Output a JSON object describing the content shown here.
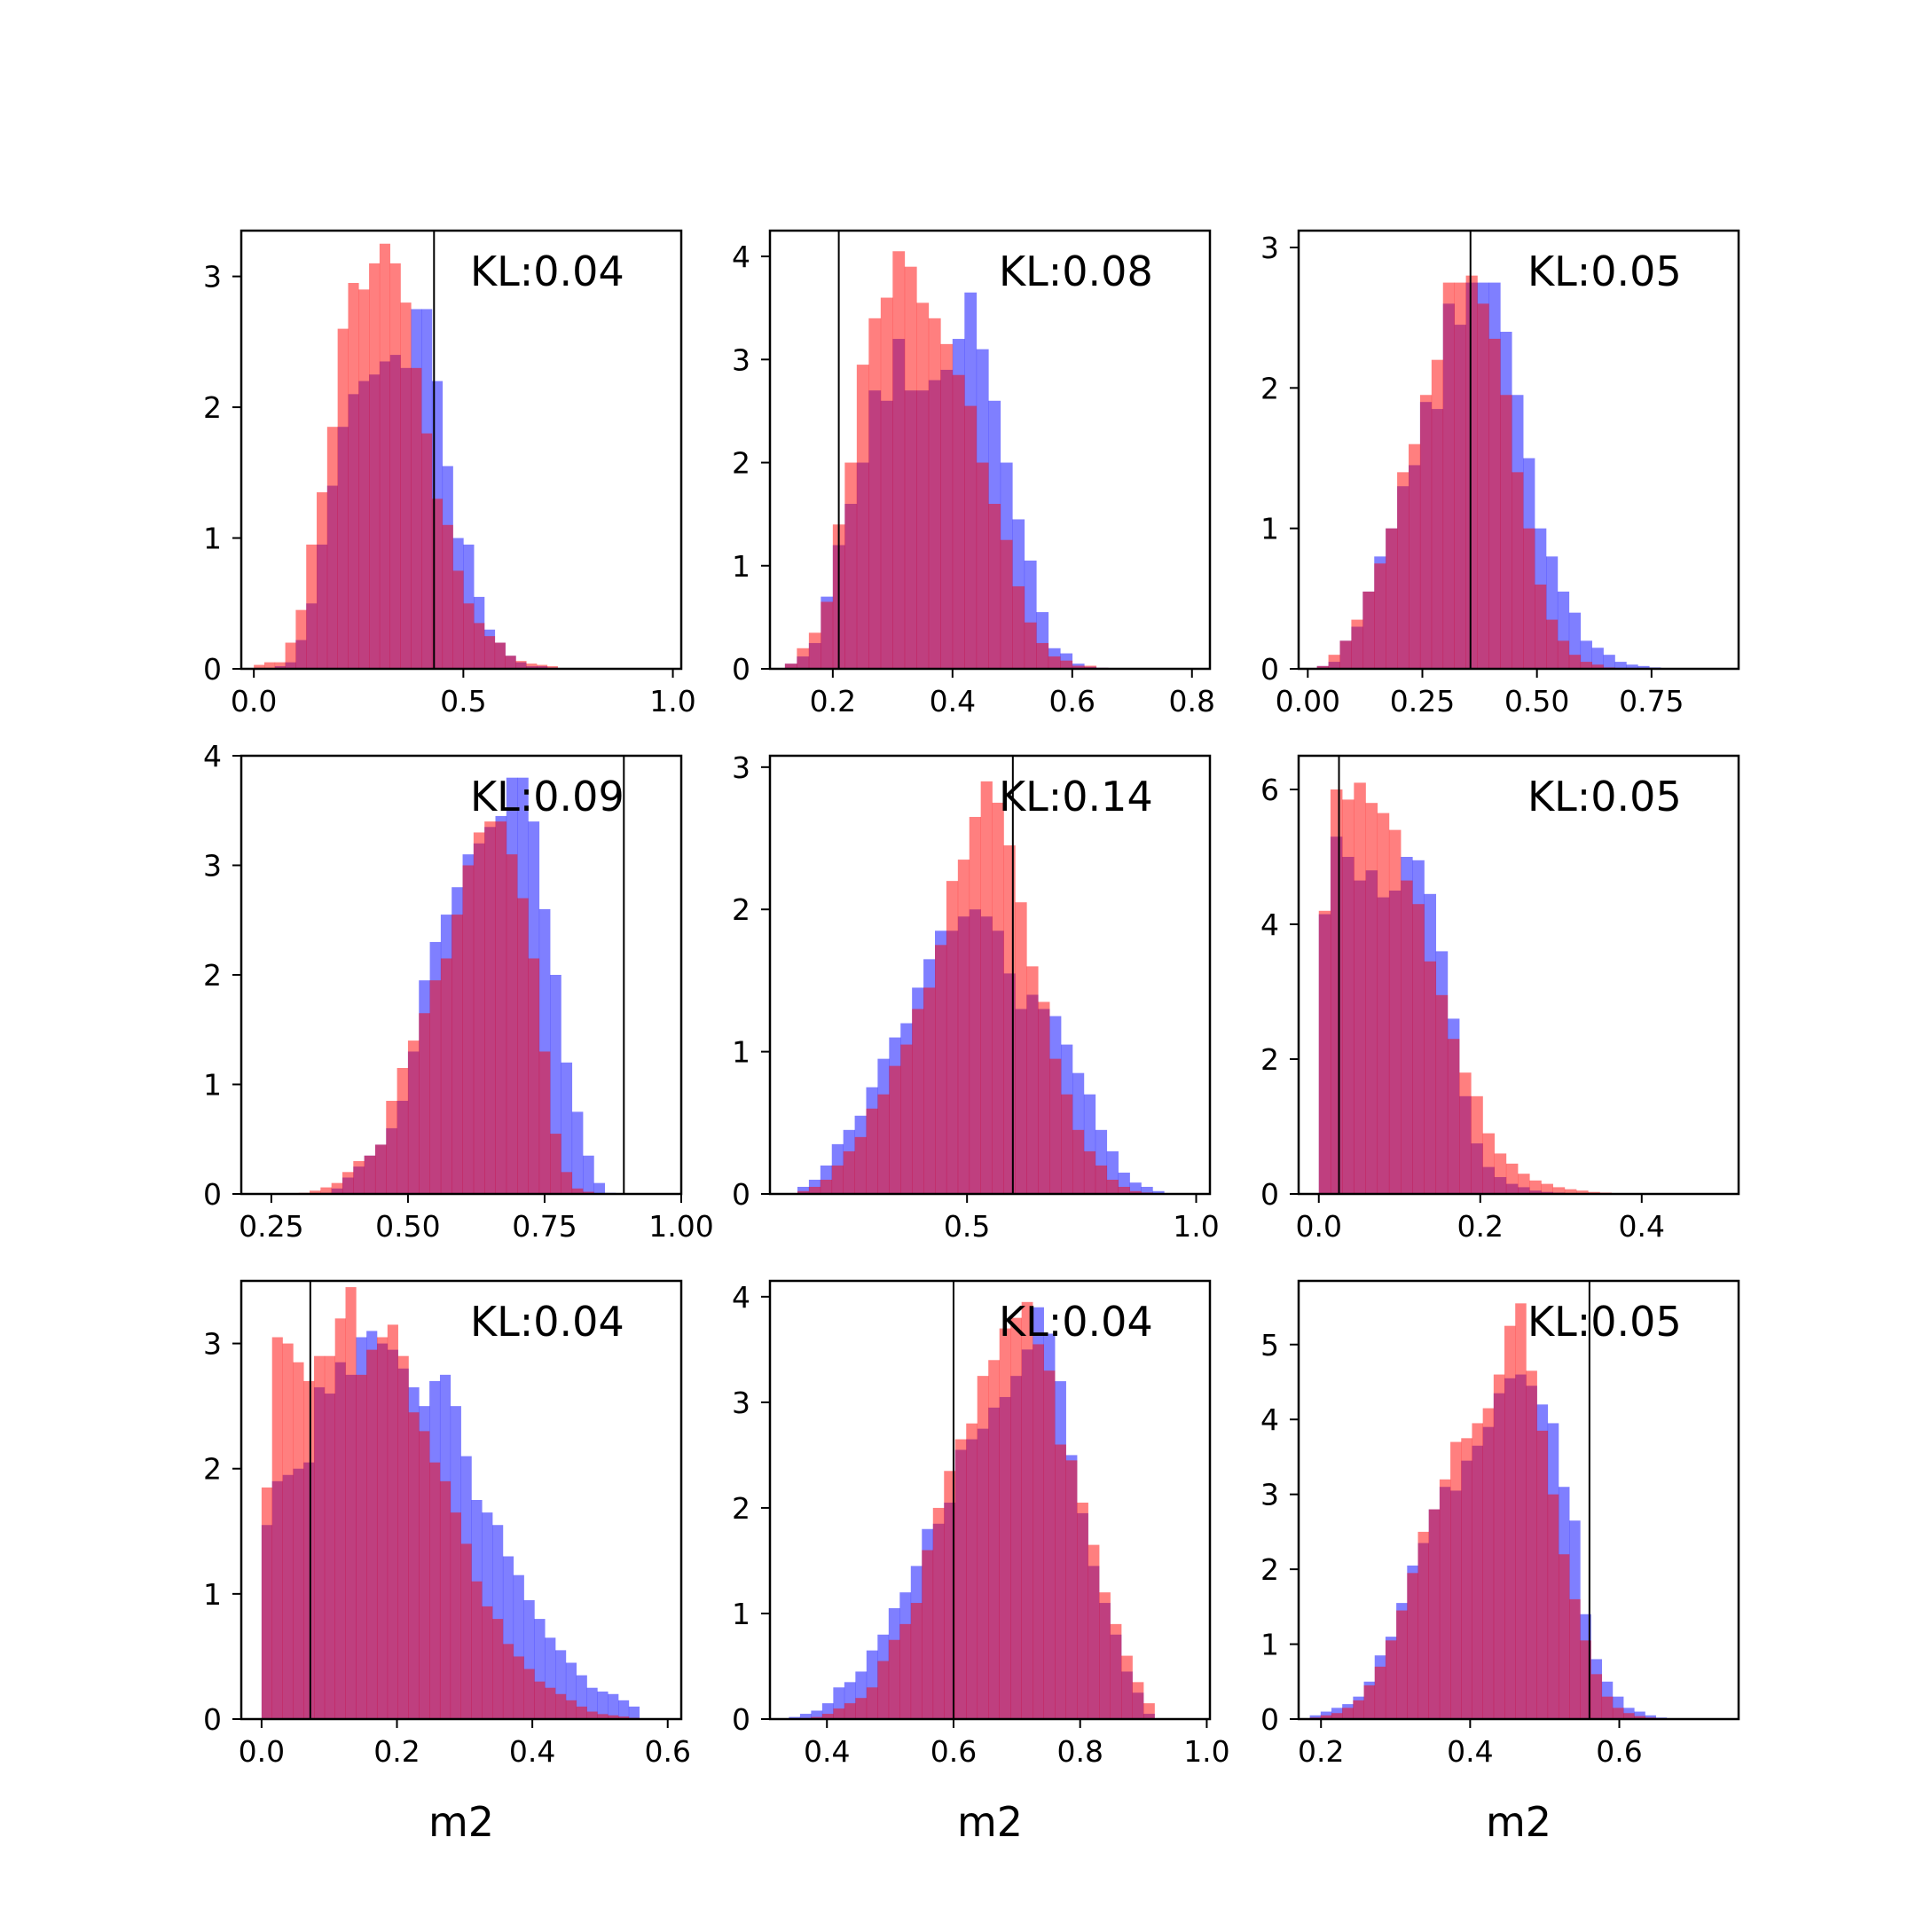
{
  "colors": {
    "prior": "#ff0000",
    "posterior": "#0000ff",
    "opacity": 0.5,
    "truth_line": "#000000"
  },
  "chart_data": [
    {
      "type": "bar",
      "annotation": "KL:0.04",
      "xlabel": "",
      "xlim": [
        -0.03,
        1.02
      ],
      "ylim": [
        0,
        3.35
      ],
      "xticks": [
        0.0,
        0.5,
        1.0
      ],
      "xtick_labels": [
        "0.0",
        "0.5",
        "1.0"
      ],
      "yticks": [
        0,
        1,
        2,
        3
      ],
      "ytick_labels": [
        "0",
        "1",
        "2",
        "3"
      ],
      "bin_start": 0.0,
      "bin_width": 0.025,
      "series": [
        {
          "values": [
            0.0,
            0.0,
            0.02,
            0.05,
            0.22,
            0.5,
            0.95,
            1.4,
            1.85,
            2.1,
            2.2,
            2.25,
            2.35,
            2.4,
            2.3,
            2.75,
            2.75,
            2.2,
            1.55,
            1.0,
            0.95,
            0.55,
            0.3,
            0.2,
            0.1,
            0.05,
            0.02,
            0.02,
            0.01,
            0.0,
            0.0,
            0.0,
            0.0,
            0.0,
            0.0,
            0.0,
            0.0,
            0.0,
            0.0,
            0.0
          ]
        },
        {
          "values": [
            0.03,
            0.05,
            0.05,
            0.2,
            0.45,
            0.95,
            1.35,
            1.85,
            2.6,
            2.95,
            2.9,
            3.1,
            3.25,
            3.1,
            2.8,
            2.3,
            1.8,
            1.3,
            1.1,
            0.75,
            0.5,
            0.35,
            0.25,
            0.2,
            0.1,
            0.06,
            0.04,
            0.03,
            0.02,
            0.0,
            0.0,
            0.0,
            0.0,
            0.0,
            0.0,
            0.0,
            0.0,
            0.0,
            0.0,
            0.0
          ]
        }
      ],
      "vline": 0.43
    },
    {
      "type": "bar",
      "annotation": "KL:0.08",
      "xlabel": "",
      "xlim": [
        0.095,
        0.83
      ],
      "ylim": [
        0,
        4.25
      ],
      "xticks": [
        0.2,
        0.4,
        0.6,
        0.8
      ],
      "xtick_labels": [
        "0.2",
        "0.4",
        "0.6",
        "0.8"
      ],
      "yticks": [
        0,
        1,
        2,
        3,
        4
      ],
      "ytick_labels": [
        "0",
        "1",
        "2",
        "3",
        "4"
      ],
      "bin_start": 0.12,
      "bin_width": 0.02,
      "series": [
        {
          "values": [
            0.05,
            0.12,
            0.25,
            0.7,
            1.2,
            1.6,
            2.0,
            2.7,
            2.6,
            3.2,
            2.7,
            2.7,
            2.8,
            2.9,
            3.2,
            3.65,
            3.1,
            2.6,
            2.0,
            1.45,
            1.05,
            0.55,
            0.2,
            0.15,
            0.05,
            0.02,
            0.01,
            0.0,
            0.0,
            0.0,
            0.0,
            0.0,
            0.0,
            0.0
          ]
        },
        {
          "values": [
            0.05,
            0.2,
            0.35,
            0.65,
            1.4,
            2.0,
            2.95,
            3.4,
            3.6,
            4.05,
            3.9,
            3.55,
            3.4,
            3.15,
            2.85,
            2.55,
            2.0,
            1.6,
            1.25,
            0.8,
            0.45,
            0.25,
            0.12,
            0.08,
            0.03,
            0.03,
            0.01,
            0.0,
            0.0,
            0.0,
            0.0,
            0.0,
            0.0,
            0.0
          ]
        }
      ],
      "vline": 0.21
    },
    {
      "type": "bar",
      "annotation": "KL:0.05",
      "xlabel": "",
      "xlim": [
        -0.02,
        0.94
      ],
      "ylim": [
        0,
        3.12
      ],
      "xticks": [
        0.0,
        0.25,
        0.5,
        0.75
      ],
      "xtick_labels": [
        "0.00",
        "0.25",
        "0.50",
        "0.75"
      ],
      "yticks": [
        0,
        1,
        2,
        3
      ],
      "ytick_labels": [
        "0",
        "1",
        "2",
        "3"
      ],
      "bin_start": 0.02,
      "bin_width": 0.025,
      "series": [
        {
          "values": [
            0.02,
            0.05,
            0.2,
            0.3,
            0.55,
            0.8,
            1.0,
            1.3,
            1.45,
            1.9,
            1.85,
            2.6,
            2.45,
            2.75,
            2.75,
            2.75,
            2.4,
            1.95,
            1.5,
            1.0,
            0.8,
            0.55,
            0.4,
            0.2,
            0.15,
            0.1,
            0.05,
            0.03,
            0.02,
            0.01,
            0.0,
            0.0,
            0.0,
            0.0,
            0.0,
            0.0,
            0.0,
            0.0
          ]
        },
        {
          "values": [
            0.02,
            0.1,
            0.2,
            0.35,
            0.55,
            0.75,
            1.0,
            1.4,
            1.6,
            1.95,
            2.2,
            2.75,
            2.75,
            2.8,
            2.6,
            2.35,
            1.95,
            1.4,
            1.0,
            0.6,
            0.35,
            0.2,
            0.1,
            0.05,
            0.03,
            0.01,
            0.0,
            0.0,
            0.0,
            0.0,
            0.0,
            0.0,
            0.0,
            0.0,
            0.0,
            0.0,
            0.0,
            0.0
          ]
        }
      ],
      "vline": 0.355
    },
    {
      "type": "bar",
      "annotation": "KL:0.09",
      "xlabel": "",
      "xlim": [
        0.195,
        1.0
      ],
      "ylim": [
        0,
        4.0
      ],
      "xticks": [
        0.25,
        0.5,
        0.75,
        1.0
      ],
      "xtick_labels": [
        "0.25",
        "0.50",
        "0.75",
        "1.00"
      ],
      "yticks": [
        0,
        1,
        2,
        3,
        4
      ],
      "ytick_labels": [
        "0",
        "1",
        "2",
        "3",
        "4"
      ],
      "bin_start": 0.3,
      "bin_width": 0.02,
      "series": [
        {
          "values": [
            0.0,
            0.0,
            0.01,
            0.05,
            0.15,
            0.25,
            0.35,
            0.45,
            0.6,
            0.85,
            1.3,
            1.95,
            2.3,
            2.55,
            2.8,
            3.1,
            3.2,
            3.35,
            3.45,
            3.8,
            3.8,
            3.4,
            2.6,
            2.0,
            1.2,
            0.75,
            0.35,
            0.1,
            0.01,
            0.0,
            0.0,
            0.0,
            0.0
          ]
        },
        {
          "values": [
            0.01,
            0.03,
            0.06,
            0.1,
            0.2,
            0.3,
            0.35,
            0.45,
            0.85,
            1.15,
            1.4,
            1.65,
            1.95,
            2.15,
            2.55,
            3.0,
            3.3,
            3.4,
            3.4,
            3.1,
            2.7,
            2.15,
            1.3,
            0.55,
            0.2,
            0.05,
            0.02,
            0.0,
            0.0,
            0.0,
            0.0,
            0.0,
            0.0
          ]
        }
      ],
      "vline": 0.895
    },
    {
      "type": "bar",
      "annotation": "KL:0.14",
      "xlabel": "",
      "xlim": [
        0.07,
        1.03
      ],
      "ylim": [
        0,
        3.08
      ],
      "xticks": [
        0.5,
        1.0
      ],
      "xtick_labels": [
        "0.5",
        "1.0"
      ],
      "yticks": [
        0,
        1,
        2,
        3
      ],
      "ytick_labels": [
        "0",
        "1",
        "2",
        "3"
      ],
      "bin_start": 0.13,
      "bin_width": 0.025,
      "series": [
        {
          "values": [
            0.05,
            0.1,
            0.2,
            0.35,
            0.45,
            0.55,
            0.75,
            0.95,
            1.1,
            1.2,
            1.45,
            1.65,
            1.85,
            1.85,
            1.95,
            2.0,
            1.95,
            1.85,
            1.55,
            1.3,
            1.4,
            1.3,
            1.25,
            1.05,
            0.85,
            0.7,
            0.45,
            0.3,
            0.15,
            0.08,
            0.05,
            0.02,
            0.0,
            0.0,
            0.0,
            0.0,
            0.0
          ]
        },
        {
          "values": [
            0.02,
            0.05,
            0.1,
            0.2,
            0.3,
            0.4,
            0.6,
            0.7,
            0.9,
            1.05,
            1.3,
            1.45,
            1.75,
            2.2,
            2.35,
            2.65,
            2.9,
            2.75,
            2.45,
            2.05,
            1.6,
            1.35,
            0.95,
            0.7,
            0.45,
            0.3,
            0.2,
            0.1,
            0.05,
            0.02,
            0.01,
            0.0,
            0.0,
            0.0,
            0.0,
            0.0,
            0.0
          ]
        }
      ],
      "vline": 0.6
    },
    {
      "type": "bar",
      "annotation": "KL:0.05",
      "xlabel": "",
      "xlim": [
        -0.025,
        0.52
      ],
      "ylim": [
        0,
        6.5
      ],
      "xticks": [
        0.0,
        0.2,
        0.4
      ],
      "xtick_labels": [
        "0.0",
        "0.2",
        "0.4"
      ],
      "yticks": [
        0,
        2,
        4,
        6
      ],
      "ytick_labels": [
        "0",
        "2",
        "4",
        "6"
      ],
      "bin_start": 0.0,
      "bin_width": 0.0145,
      "series": [
        {
          "values": [
            4.15,
            5.3,
            5.0,
            4.65,
            4.8,
            4.4,
            4.5,
            5.0,
            4.95,
            4.45,
            3.6,
            2.6,
            1.45,
            0.75,
            0.4,
            0.25,
            0.15,
            0.1,
            0.05,
            0.03,
            0.02,
            0.01,
            0.0,
            0.0,
            0.0,
            0.0,
            0.0,
            0.0,
            0.0,
            0.0,
            0.0,
            0.0,
            0.0,
            0.0,
            0.0,
            0.0
          ]
        },
        {
          "values": [
            4.2,
            6.0,
            5.85,
            6.1,
            5.8,
            5.65,
            5.4,
            4.65,
            4.3,
            3.45,
            2.95,
            2.3,
            1.8,
            1.45,
            0.9,
            0.6,
            0.45,
            0.3,
            0.2,
            0.15,
            0.1,
            0.07,
            0.05,
            0.03,
            0.02,
            0.01,
            0.0,
            0.0,
            0.0,
            0.0,
            0.0,
            0.0,
            0.0,
            0.0,
            0.0,
            0.0
          ]
        }
      ],
      "vline": 0.025
    },
    {
      "type": "bar",
      "annotation": "KL:0.04",
      "xlabel": "m2",
      "xlim": [
        -0.03,
        0.62
      ],
      "ylim": [
        0,
        3.5
      ],
      "xticks": [
        0.0,
        0.2,
        0.4,
        0.6
      ],
      "xtick_labels": [
        "0.0",
        "0.2",
        "0.4",
        "0.6"
      ],
      "yticks": [
        0,
        1,
        2,
        3
      ],
      "ytick_labels": [
        "0",
        "1",
        "2",
        "3"
      ],
      "bin_start": 0.0,
      "bin_width": 0.0155,
      "series": [
        {
          "values": [
            1.55,
            1.9,
            1.95,
            2.0,
            2.05,
            2.65,
            2.6,
            2.85,
            2.75,
            3.05,
            3.1,
            3.0,
            2.95,
            2.8,
            2.65,
            2.5,
            2.7,
            2.75,
            2.5,
            2.1,
            1.75,
            1.65,
            1.55,
            1.3,
            1.15,
            0.95,
            0.8,
            0.65,
            0.55,
            0.45,
            0.35,
            0.25,
            0.22,
            0.2,
            0.15,
            0.1,
            0.0,
            0.0,
            0.0,
            0.0
          ]
        },
        {
          "values": [
            1.85,
            3.05,
            3.0,
            2.85,
            2.7,
            2.9,
            2.9,
            3.2,
            3.45,
            2.75,
            2.95,
            3.05,
            3.15,
            2.9,
            2.45,
            2.3,
            2.05,
            1.9,
            1.65,
            1.4,
            1.1,
            0.9,
            0.8,
            0.6,
            0.5,
            0.4,
            0.3,
            0.25,
            0.2,
            0.15,
            0.1,
            0.06,
            0.04,
            0.03,
            0.02,
            0.01,
            0.0,
            0.0,
            0.0,
            0.0
          ]
        }
      ],
      "vline": 0.072
    },
    {
      "type": "bar",
      "annotation": "KL:0.04",
      "xlabel": "m2",
      "xlim": [
        0.31,
        1.005
      ],
      "ylim": [
        0,
        4.15
      ],
      "xticks": [
        0.4,
        0.6,
        0.8,
        1.0
      ],
      "xtick_labels": [
        "0.4",
        "0.6",
        "0.8",
        "1.0"
      ],
      "yticks": [
        0,
        1,
        2,
        3,
        4
      ],
      "ytick_labels": [
        "0",
        "1",
        "2",
        "3",
        "4"
      ],
      "bin_start": 0.34,
      "bin_width": 0.0175,
      "series": [
        {
          "values": [
            0.02,
            0.05,
            0.08,
            0.15,
            0.3,
            0.35,
            0.45,
            0.65,
            0.8,
            1.05,
            1.2,
            1.45,
            1.8,
            1.85,
            2.05,
            2.55,
            2.65,
            2.75,
            2.95,
            3.05,
            3.25,
            3.5,
            3.9,
            3.65,
            3.2,
            2.5,
            1.95,
            1.45,
            1.1,
            0.8,
            0.45,
            0.25,
            0.05,
            0.0,
            0.0,
            0.0,
            0.0,
            0.0
          ]
        },
        {
          "values": [
            0.0,
            0.01,
            0.02,
            0.05,
            0.1,
            0.15,
            0.2,
            0.3,
            0.55,
            0.75,
            0.9,
            1.1,
            1.6,
            2.0,
            2.35,
            2.65,
            2.8,
            3.25,
            3.4,
            3.7,
            3.8,
            3.95,
            3.55,
            3.3,
            2.6,
            2.45,
            2.05,
            1.65,
            1.2,
            0.9,
            0.6,
            0.35,
            0.15,
            0.0,
            0.0,
            0.0,
            0.0,
            0.0
          ]
        }
      ],
      "vline": 0.6
    },
    {
      "type": "bar",
      "annotation": "KL:0.05",
      "xlabel": "m2",
      "xlim": [
        0.17,
        0.76
      ],
      "ylim": [
        0,
        5.85
      ],
      "xticks": [
        0.2,
        0.4,
        0.6
      ],
      "xtick_labels": [
        "0.2",
        "0.4",
        "0.6"
      ],
      "yticks": [
        0,
        1,
        2,
        3,
        4,
        5
      ],
      "ytick_labels": [
        "0",
        "1",
        "2",
        "3",
        "4",
        "5"
      ],
      "bin_start": 0.185,
      "bin_width": 0.0145,
      "series": [
        {
          "values": [
            0.05,
            0.1,
            0.15,
            0.2,
            0.3,
            0.5,
            0.85,
            1.1,
            1.55,
            2.05,
            2.35,
            2.8,
            3.1,
            3.05,
            3.45,
            3.65,
            3.9,
            4.35,
            4.55,
            4.6,
            4.45,
            4.2,
            3.95,
            3.1,
            2.65,
            1.4,
            0.8,
            0.5,
            0.3,
            0.15,
            0.1,
            0.05,
            0.02,
            0.0,
            0.0,
            0.0,
            0.0,
            0.0,
            0.0,
            0.0
          ]
        },
        {
          "values": [
            0.02,
            0.05,
            0.08,
            0.15,
            0.25,
            0.45,
            0.7,
            1.05,
            1.45,
            1.95,
            2.5,
            2.8,
            3.2,
            3.7,
            3.75,
            3.95,
            4.15,
            4.6,
            5.25,
            5.55,
            4.65,
            3.85,
            3.0,
            2.2,
            1.6,
            1.05,
            0.6,
            0.3,
            0.15,
            0.08,
            0.04,
            0.02,
            0.0,
            0.0,
            0.0,
            0.0,
            0.0,
            0.0,
            0.0,
            0.0
          ]
        }
      ],
      "vline": 0.56
    }
  ]
}
